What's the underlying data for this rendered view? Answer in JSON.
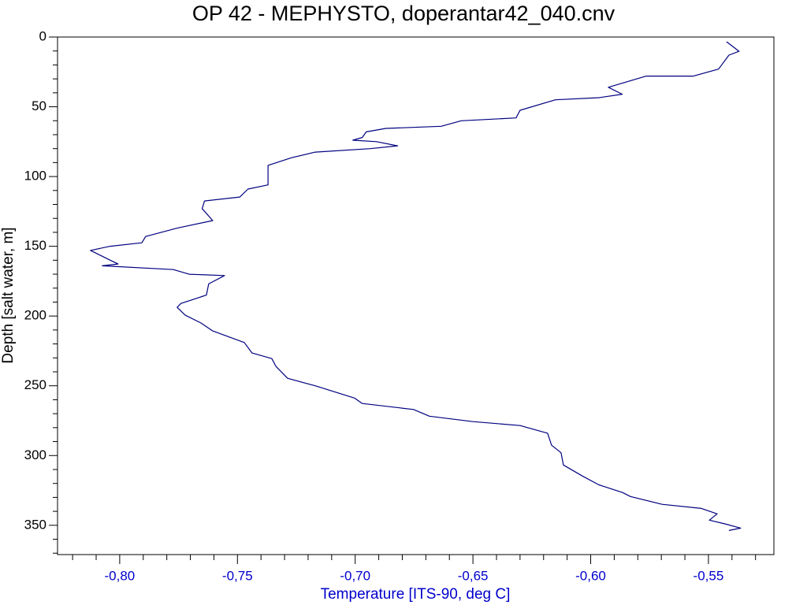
{
  "chart_data": {
    "type": "line",
    "title": "OP 42 - MEPHYSTO, doperantar42_040.cnv",
    "x_label": "Temperature [ITS-90, deg C]",
    "y_label": "Depth [salt water, m]",
    "color": "#000080",
    "x_axis_color": "#0000cc",
    "y_axis_color": "#000000",
    "xlim": [
      -0.8264,
      -0.5222
    ],
    "ylim": [
      371,
      0
    ],
    "xticks": [
      {
        "value": -0.8,
        "label": "-0,80"
      },
      {
        "value": -0.75,
        "label": "-0,75"
      },
      {
        "value": -0.7,
        "label": "-0,70"
      },
      {
        "value": -0.65,
        "label": "-0,65"
      },
      {
        "value": -0.6,
        "label": "-0,60"
      },
      {
        "value": -0.55,
        "label": "-0,55"
      }
    ],
    "yticks": [
      0,
      50,
      100,
      150,
      200,
      250,
      300,
      350
    ],
    "xminorticks": [
      -0.82,
      -0.81,
      -0.79,
      -0.78,
      -0.77,
      -0.76,
      -0.74,
      -0.73,
      -0.72,
      -0.71,
      -0.69,
      -0.68,
      -0.67,
      -0.66,
      -0.64,
      -0.63,
      -0.62,
      -0.61,
      -0.59,
      -0.58,
      -0.57,
      -0.56,
      -0.54,
      -0.53
    ],
    "yminorticks": [
      10,
      20,
      30,
      40,
      60,
      70,
      80,
      90,
      110,
      120,
      130,
      140,
      160,
      170,
      180,
      190,
      210,
      220,
      230,
      240,
      260,
      270,
      280,
      290,
      310,
      320,
      330,
      340,
      360,
      370
    ],
    "x": [
      -0.5423,
      -0.537,
      -0.5413,
      -0.5457,
      -0.5564,
      -0.5764,
      -0.5925,
      -0.5866,
      -0.5965,
      -0.615,
      -0.63,
      -0.6317,
      -0.655,
      -0.6635,
      -0.687,
      -0.6953,
      -0.697,
      -0.701,
      -0.691,
      -0.682,
      -0.6936,
      -0.717,
      -0.727,
      -0.737,
      -0.737,
      -0.7455,
      -0.749,
      -0.764,
      -0.765,
      -0.7605,
      -0.7756,
      -0.789,
      -0.7906,
      -0.804,
      -0.8124,
      -0.804,
      -0.8007,
      -0.8074,
      -0.7772,
      -0.7705,
      -0.7555,
      -0.7622,
      -0.7632,
      -0.774,
      -0.7756,
      -0.7722,
      -0.7655,
      -0.7605,
      -0.7471,
      -0.7438,
      -0.7354,
      -0.7337,
      -0.7287,
      -0.717,
      -0.7003,
      -0.697,
      -0.6752,
      -0.6685,
      -0.65,
      -0.63,
      -0.6183,
      -0.6166,
      -0.6126,
      -0.6116,
      -0.6032,
      -0.5965,
      -0.5865,
      -0.5831,
      -0.5697,
      -0.553,
      -0.5463,
      -0.5496,
      -0.543,
      -0.5363,
      -0.5413
    ],
    "values": [
      3.4,
      10.2,
      13,
      23,
      28,
      28,
      36,
      41,
      43.5,
      45,
      52.5,
      58,
      60,
      64,
      65.5,
      68,
      72,
      74,
      75,
      78,
      80,
      82.5,
      86.5,
      92,
      106,
      109,
      114.7,
      117.5,
      123,
      131.6,
      137,
      143,
      147.5,
      150,
      153,
      160,
      162.7,
      164,
      166.7,
      170,
      171,
      177,
      185,
      191,
      193.8,
      199.4,
      205,
      210.7,
      219,
      226.5,
      230.5,
      236,
      244.6,
      250,
      258.8,
      262.7,
      267,
      271.8,
      275.7,
      278.5,
      284,
      292.6,
      298,
      306.8,
      315,
      321,
      326.5,
      329.4,
      335,
      337.9,
      341.8,
      346.3,
      349,
      352,
      353.7
    ]
  }
}
